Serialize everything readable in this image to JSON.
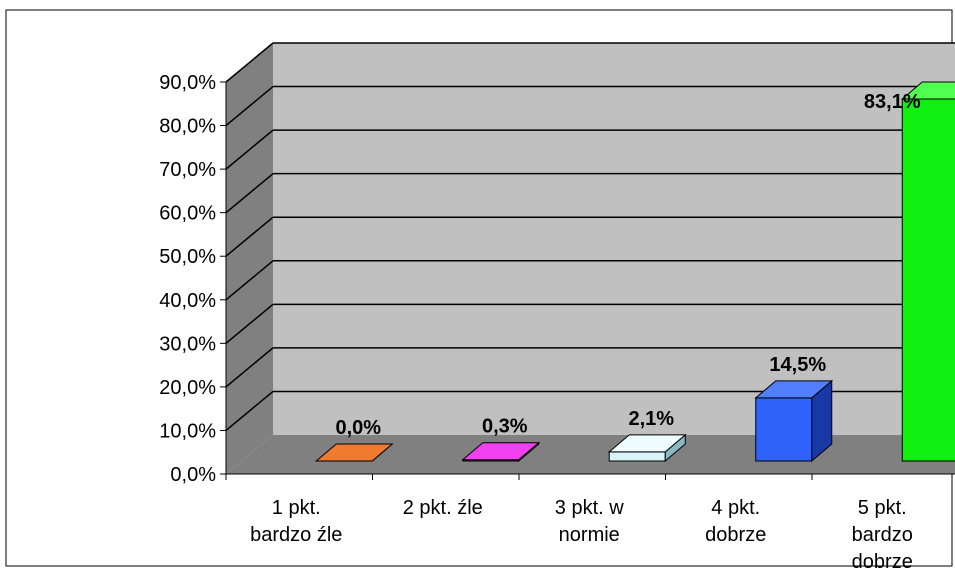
{
  "chart_data": {
    "type": "bar",
    "title": "",
    "xlabel": "",
    "ylabel": "",
    "ylim": [
      0,
      90
    ],
    "grid": true,
    "legend": "none",
    "y_ticks": [
      "0,0%",
      "10,0%",
      "20,0%",
      "30,0%",
      "40,0%",
      "50,0%",
      "60,0%",
      "70,0%",
      "80,0%",
      "90,0%"
    ],
    "categories": [
      [
        "1 pkt.",
        "bardzo źle"
      ],
      [
        "2 pkt. źle"
      ],
      [
        "3 pkt. w",
        "normie"
      ],
      [
        "4 pkt.",
        "dobrze"
      ],
      [
        "5 pkt.",
        "bardzo",
        "dobrze"
      ]
    ],
    "values": [
      0.0,
      0.3,
      2.1,
      14.5,
      83.1
    ],
    "data_labels": [
      "0,0%",
      "0,3%",
      "2,1%",
      "14,5%",
      "83,1%"
    ],
    "colors": [
      {
        "front": "#e8620c",
        "side": "#9c3f06",
        "top": "#f07a30"
      },
      {
        "front": "#e010e0",
        "side": "#8a0a8a",
        "top": "#f040f0"
      },
      {
        "front": "#d8f4f8",
        "side": "#8ab8c0",
        "top": "#eefcff"
      },
      {
        "front": "#2f62f8",
        "side": "#1838a8",
        "top": "#5080ff"
      },
      {
        "front": "#10f010",
        "side": "#08a808",
        "top": "#50ff50"
      }
    ]
  }
}
